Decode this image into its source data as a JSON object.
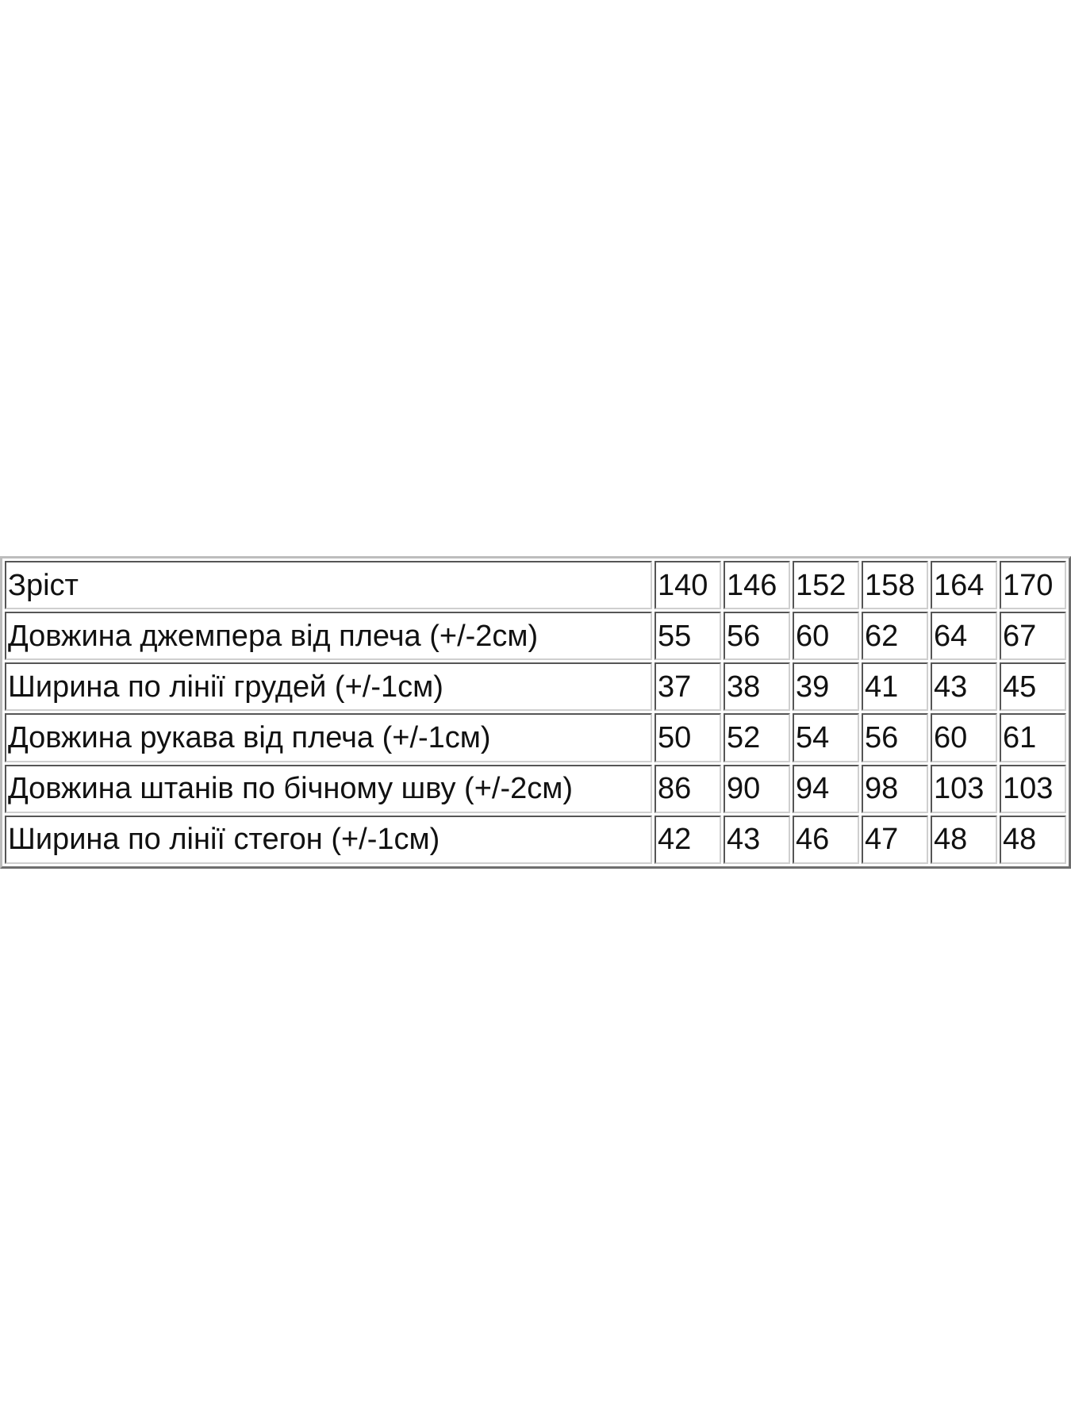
{
  "table": {
    "header": {
      "label": "Зріст",
      "values": [
        "140",
        "146",
        "152",
        "158",
        "164",
        "170"
      ]
    },
    "rows": [
      {
        "label": "Довжина джемпера від плеча (+/-2см)",
        "values": [
          "55",
          "56",
          "60",
          "62",
          "64",
          "67"
        ]
      },
      {
        "label": "Ширина по лінії грудей (+/-1см)",
        "values": [
          "37",
          "38",
          "39",
          "41",
          "43",
          "45"
        ]
      },
      {
        "label": "Довжина рукава від плеча (+/-1см)",
        "values": [
          "50",
          "52",
          "54",
          "56",
          "60",
          "61"
        ]
      },
      {
        "label": "Довжина штанів по бічному шву (+/-2см)",
        "values": [
          "86",
          "90",
          "94",
          "98",
          "103",
          "103"
        ]
      },
      {
        "label": "Ширина по лінії стегон (+/-1см)",
        "values": [
          "42",
          "43",
          "46",
          "47",
          "48",
          "48"
        ]
      }
    ]
  }
}
